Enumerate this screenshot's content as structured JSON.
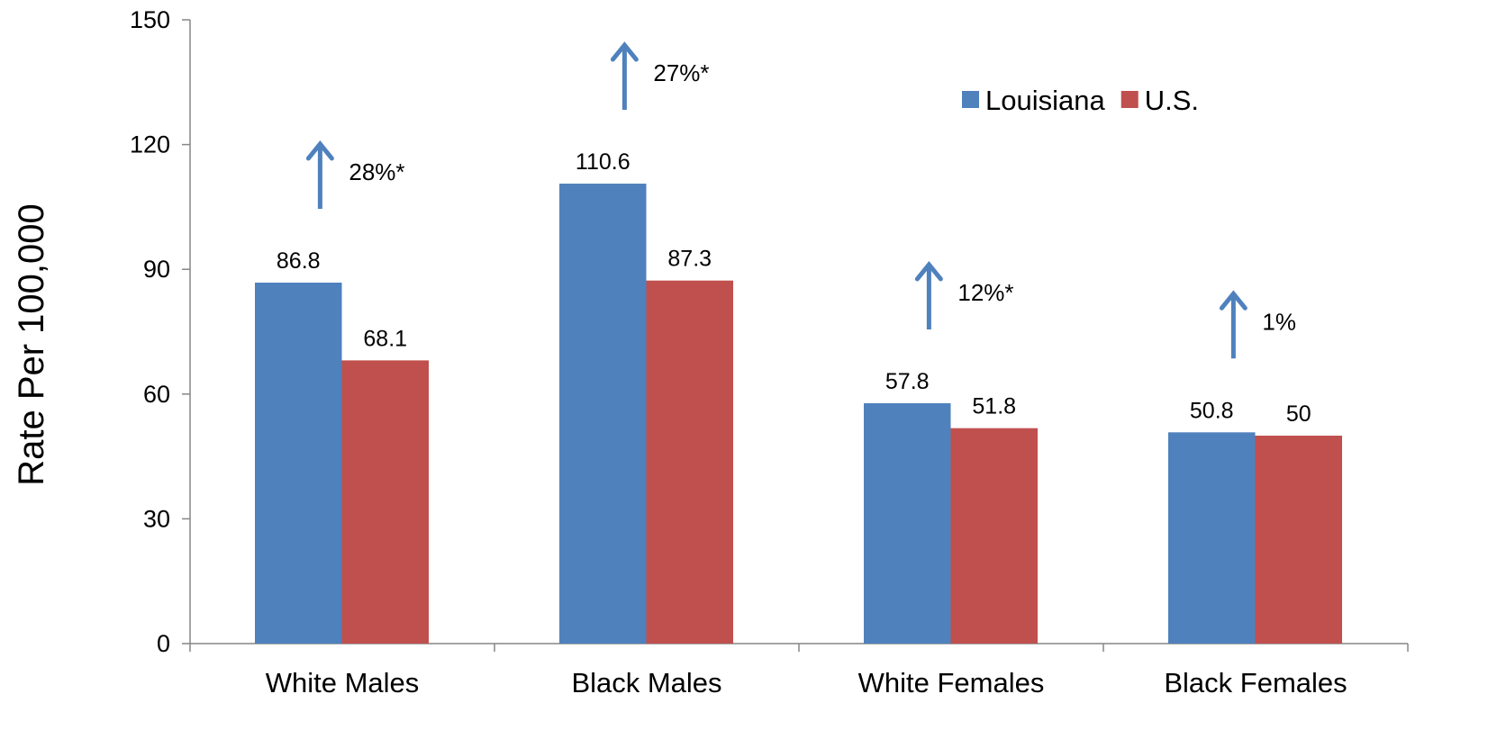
{
  "chart_data": {
    "type": "bar",
    "title": "",
    "xlabel": "",
    "ylabel": "Rate Per 100,000",
    "ylim": [
      0,
      150
    ],
    "yticks": [
      0,
      30,
      60,
      90,
      120,
      150
    ],
    "categories": [
      "White Males",
      "Black Males",
      "White Females",
      "Black Females"
    ],
    "series": [
      {
        "name": "Louisiana",
        "color": "#4F81BD",
        "values": [
          86.8,
          110.6,
          57.8,
          50.8
        ]
      },
      {
        "name": "U.S.",
        "color": "#C0504D",
        "values": [
          68.1,
          87.3,
          51.8,
          50
        ]
      }
    ],
    "data_labels": [
      [
        "86.8",
        "110.6",
        "57.8",
        "50.8"
      ],
      [
        "68.1",
        "87.3",
        "51.8",
        "50"
      ]
    ],
    "annotations": [
      {
        "category": "White Males",
        "text": "28%*",
        "arrow": "up"
      },
      {
        "category": "Black Males",
        "text": "27%*",
        "arrow": "up"
      },
      {
        "category": "White Females",
        "text": "12%*",
        "arrow": "up"
      },
      {
        "category": "Black Females",
        "text": "1%",
        "arrow": "up"
      }
    ],
    "arrow_color": "#4F81BD",
    "legend_position": "top-right",
    "grid": false
  }
}
